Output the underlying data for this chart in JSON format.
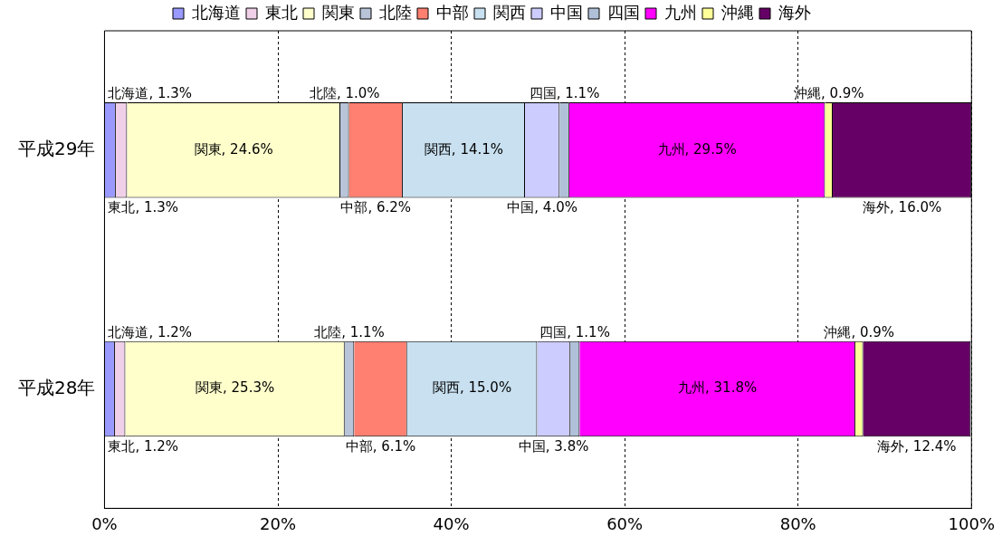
{
  "chart_data": {
    "type": "bar",
    "orientation": "horizontal",
    "stacked": true,
    "categories": [
      "平成29年",
      "平成28年"
    ],
    "series": [
      {
        "name": "北海道",
        "color": "#9999ff",
        "values": [
          1.3,
          1.2
        ],
        "value_labels": [
          "北海道, 1.3%",
          "北海道, 1.2%"
        ]
      },
      {
        "name": "東北",
        "color": "#f0d0e8",
        "values": [
          1.3,
          1.2
        ],
        "value_labels": [
          "東北, 1.3%",
          "東北, 1.2%"
        ]
      },
      {
        "name": "関東",
        "color": "#ffffcc",
        "values": [
          24.6,
          25.3
        ],
        "value_labels": [
          "関東, 24.6%",
          "関東, 25.3%"
        ]
      },
      {
        "name": "北陸",
        "color": "#b8c4d8",
        "values": [
          1.0,
          1.1
        ],
        "value_labels": [
          "北陸, 1.0%",
          "北陸, 1.1%"
        ]
      },
      {
        "name": "中部",
        "color": "#ff7f70",
        "values": [
          6.2,
          6.1
        ],
        "value_labels": [
          "中部, 6.2%",
          "中部, 6.1%"
        ]
      },
      {
        "name": "関西",
        "color": "#c8e0f0",
        "values": [
          14.1,
          15.0
        ],
        "value_labels": [
          "関西, 14.1%",
          "関西, 15.0%"
        ]
      },
      {
        "name": "中国",
        "color": "#ccccff",
        "values": [
          4.0,
          3.8
        ],
        "value_labels": [
          "中国, 4.0%",
          "中国, 3.8%"
        ]
      },
      {
        "name": "四国",
        "color": "#b0c0d8",
        "values": [
          1.1,
          1.1
        ],
        "value_labels": [
          "四国, 1.1%",
          "四国, 1.1%"
        ]
      },
      {
        "name": "九州",
        "color": "#ff00ff",
        "values": [
          29.5,
          31.8
        ],
        "value_labels": [
          "九州, 29.5%",
          "九州, 31.8%"
        ]
      },
      {
        "name": "沖縄",
        "color": "#ffff99",
        "values": [
          0.9,
          0.9
        ],
        "value_labels": [
          "沖縄, 0.9%",
          "沖縄, 0.9%"
        ]
      },
      {
        "name": "海外",
        "color": "#660066",
        "values": [
          16.0,
          12.4
        ],
        "value_labels": [
          "海外, 16.0%",
          "海外, 12.4%"
        ]
      }
    ],
    "xlim": [
      0,
      100
    ],
    "xticks": [
      {
        "value": 0,
        "label": "0%"
      },
      {
        "value": 20,
        "label": "20%"
      },
      {
        "value": 40,
        "label": "40%"
      },
      {
        "value": 60,
        "label": "60%"
      },
      {
        "value": 80,
        "label": "80%"
      },
      {
        "value": 100,
        "label": "100%"
      }
    ],
    "grid": "x",
    "legend": "top"
  }
}
